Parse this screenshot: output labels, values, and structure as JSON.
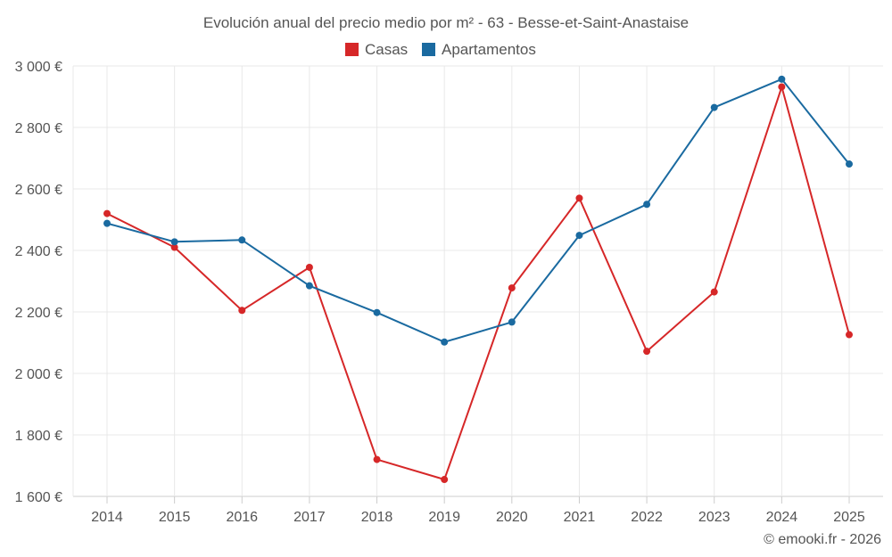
{
  "chart_data": {
    "type": "line",
    "title": "Evolución anual del precio medio por m² - 63 - Besse-et-Saint-Anastaise",
    "categories": [
      "2014",
      "2015",
      "2016",
      "2017",
      "2018",
      "2019",
      "2020",
      "2021",
      "2022",
      "2023",
      "2024",
      "2025"
    ],
    "series": [
      {
        "name": "Casas",
        "color": "#d62728",
        "values": [
          2520,
          2410,
          2205,
          2345,
          1720,
          1655,
          2278,
          2570,
          2072,
          2265,
          2932,
          2126
        ]
      },
      {
        "name": "Apartamentos",
        "color": "#1a6aa0",
        "values": [
          2488,
          2428,
          2434,
          2285,
          2198,
          2102,
          2167,
          2449,
          2550,
          2865,
          2957,
          2681
        ]
      }
    ],
    "y_ticks": [
      1600,
      1800,
      2000,
      2200,
      2400,
      2600,
      2800,
      3000
    ],
    "y_tick_labels": [
      "1 600 €",
      "1 800 €",
      "2 000 €",
      "2 200 €",
      "2 400 €",
      "2 600 €",
      "2 800 €",
      "3 000 €"
    ],
    "ylim": [
      1600,
      3000
    ],
    "xlabel": "",
    "ylabel": "",
    "grid": true,
    "legend_position": "top-center",
    "credit": "© emooki.fr - 2026"
  }
}
